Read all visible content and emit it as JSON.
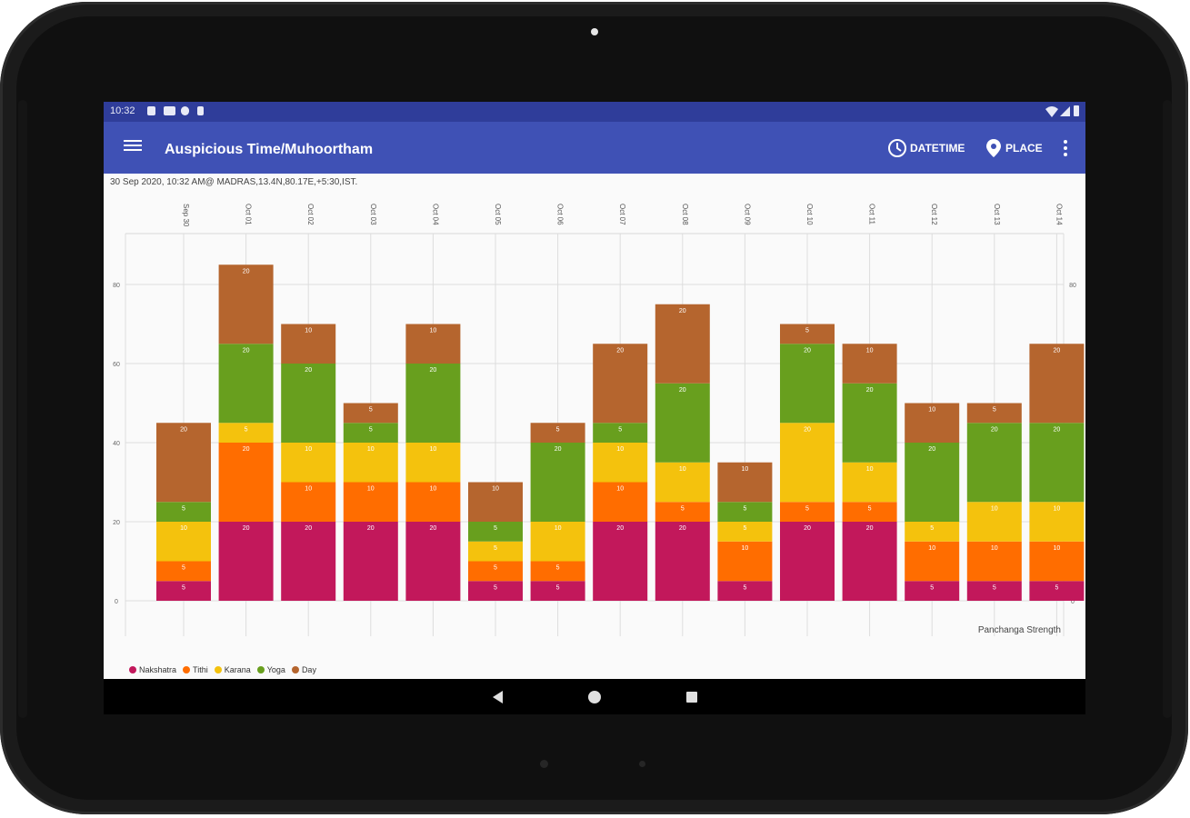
{
  "status_bar": {
    "time": "10:32"
  },
  "app_bar": {
    "title": "Auspicious Time/Muhoortham",
    "datetime_label": "DATETIME",
    "place_label": "PLACE"
  },
  "info_line": "30 Sep 2020, 10:32 AM@ MADRAS,13.4N,80.17E,+5:30,IST.",
  "chart_data": {
    "type": "bar",
    "stacked": true,
    "title": "",
    "xlabel": "",
    "ylabel": "",
    "corner_label": "Panchanga Strength",
    "ylim": [
      0,
      90
    ],
    "yticks": [
      0,
      20,
      40,
      60,
      80
    ],
    "categories": [
      "Sep 30",
      "Oct 01",
      "Oct 02",
      "Oct 03",
      "Oct 04",
      "Oct 05",
      "Oct 06",
      "Oct 07",
      "Oct 08",
      "Oct 09",
      "Oct 10",
      "Oct 11",
      "Oct 12",
      "Oct 13",
      "Oct 14"
    ],
    "series": [
      {
        "name": "Nakshatra",
        "color": "#c2185b",
        "values": [
          5,
          20,
          20,
          20,
          20,
          5,
          5,
          20,
          20,
          5,
          20,
          20,
          5,
          5,
          5
        ]
      },
      {
        "name": "Tithi",
        "color": "#ff6d00",
        "values": [
          5,
          20,
          10,
          10,
          10,
          5,
          5,
          10,
          5,
          10,
          5,
          5,
          10,
          10,
          10
        ]
      },
      {
        "name": "Karana",
        "color": "#f4c20d",
        "values": [
          10,
          5,
          10,
          10,
          10,
          5,
          10,
          10,
          10,
          5,
          20,
          10,
          5,
          10,
          10
        ]
      },
      {
        "name": "Yoga",
        "color": "#689f1e",
        "values": [
          5,
          20,
          20,
          5,
          20,
          5,
          20,
          5,
          20,
          5,
          20,
          20,
          20,
          20,
          20
        ]
      },
      {
        "name": "Day",
        "color": "#b5652e",
        "values": [
          20,
          20,
          10,
          5,
          10,
          10,
          5,
          20,
          20,
          10,
          5,
          10,
          10,
          5,
          20
        ]
      }
    ]
  },
  "legend": [
    {
      "label": "Nakshatra",
      "color": "#c2185b"
    },
    {
      "label": "Tithi",
      "color": "#ff6d00"
    },
    {
      "label": "Karana",
      "color": "#f4c20d"
    },
    {
      "label": "Yoga",
      "color": "#689f1e"
    },
    {
      "label": "Day",
      "color": "#b5652e"
    }
  ]
}
